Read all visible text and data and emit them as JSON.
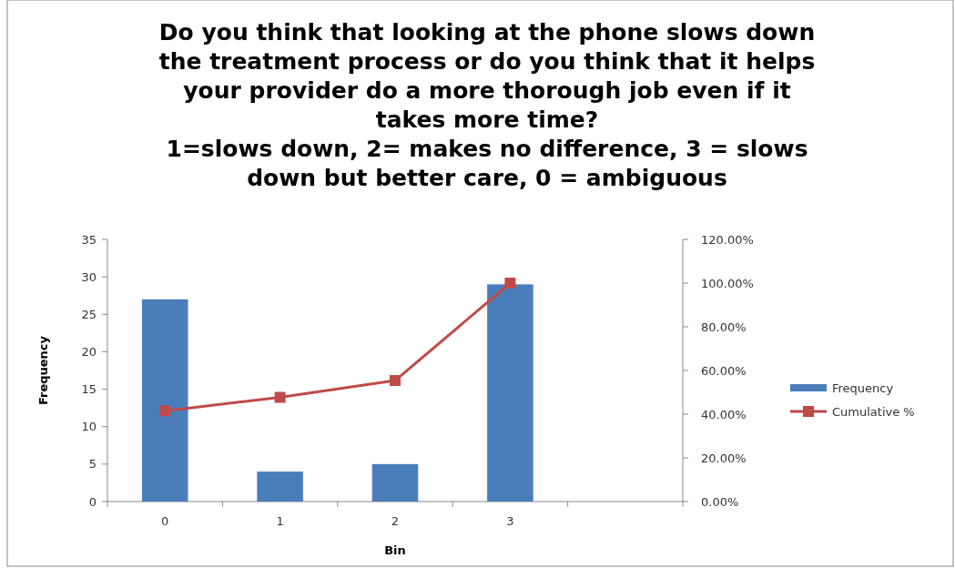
{
  "chart_data": {
    "type": "bar",
    "title": "Do you think that looking at the phone slows down\nthe treatment process or do you think that it helps\nyour provider do a more thorough job even if it\ntakes more time?\n1=slows down, 2= makes no difference, 3 = slows\ndown but better care, 0 = ambiguous",
    "xlabel": "Bin",
    "ylabel": "Frequency",
    "categories": [
      "0",
      "1",
      "2",
      "3",
      null
    ],
    "series": [
      {
        "name": "Frequency",
        "color": "#4a7ebb",
        "values": [
          27,
          4,
          5,
          29,
          null
        ]
      },
      {
        "name": "Cumulative %",
        "type": "line",
        "axis": "y2",
        "color": "#be4b48",
        "marker": "square",
        "values": [
          41.5,
          47.7,
          55.4,
          100,
          null
        ]
      }
    ],
    "ylim": [
      0,
      35
    ],
    "yticks": [
      0,
      5,
      10,
      15,
      20,
      25,
      30,
      35
    ],
    "y2lim": [
      0,
      120
    ],
    "y2ticks": [
      {
        "value": 0,
        "label": "0.00%"
      },
      {
        "value": 20,
        "label": "20.00%"
      },
      {
        "value": 40,
        "label": "40.00%"
      },
      {
        "value": 60,
        "label": "60.00%"
      },
      {
        "value": 80,
        "label": "80.00%"
      },
      {
        "value": 100,
        "label": "100.00%"
      },
      {
        "value": 120,
        "label": "120.00%"
      }
    ],
    "grid": false,
    "legend": "right"
  }
}
